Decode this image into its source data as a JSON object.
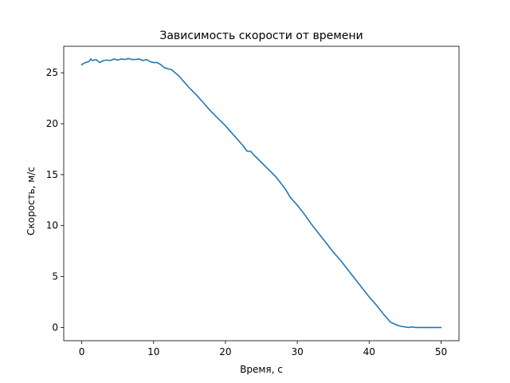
{
  "chart_data": {
    "type": "line",
    "title": "Зависимость скорости от времени",
    "xlabel": "Время, с",
    "ylabel": "Скорость, м/с",
    "xlim": [
      -2.5,
      52.5
    ],
    "ylim": [
      -1.3,
      27.6
    ],
    "x_ticks": [
      0,
      10,
      20,
      30,
      40,
      50
    ],
    "y_ticks": [
      0,
      5,
      10,
      15,
      20,
      25
    ],
    "grid": false,
    "series": [
      {
        "color": "#1f77b4",
        "x": [
          0,
          0.5,
          1,
          1.25,
          1.5,
          2,
          2.5,
          3,
          3.5,
          4,
          4.5,
          5,
          5.5,
          6,
          6.5,
          7,
          7.5,
          8,
          8.5,
          9,
          9.5,
          10,
          10.5,
          11,
          11.5,
          12,
          12.5,
          13,
          13.5,
          14,
          15,
          16,
          17,
          18,
          19,
          20,
          21,
          22,
          22.5,
          23,
          23.5,
          24,
          25,
          26,
          27,
          28,
          28.5,
          29,
          30,
          31,
          32,
          33,
          34,
          35,
          36,
          37,
          38,
          39,
          40,
          41,
          42,
          43,
          44,
          44.5,
          45,
          45.5,
          46,
          46.5,
          47,
          47.5,
          48,
          48.5,
          49,
          49.5,
          50
        ],
        "y": [
          25.8,
          26.0,
          26.1,
          26.35,
          26.2,
          26.3,
          26.0,
          26.2,
          26.25,
          26.2,
          26.35,
          26.25,
          26.35,
          26.3,
          26.4,
          26.3,
          26.3,
          26.35,
          26.2,
          26.3,
          26.1,
          26.0,
          26.0,
          25.8,
          25.5,
          25.4,
          25.3,
          25.0,
          24.7,
          24.3,
          23.5,
          22.8,
          22.0,
          21.2,
          20.5,
          19.8,
          19.0,
          18.2,
          17.8,
          17.3,
          17.3,
          16.9,
          16.2,
          15.5,
          14.8,
          13.9,
          13.4,
          12.8,
          12.0,
          11.1,
          10.1,
          9.2,
          8.3,
          7.4,
          6.6,
          5.7,
          4.8,
          3.9,
          3.0,
          2.2,
          1.3,
          0.5,
          0.2,
          0.1,
          0.05,
          0.0,
          0.05,
          0.0,
          0.0,
          0.0,
          0.0,
          0.0,
          0.0,
          0.0,
          0.0
        ]
      }
    ]
  }
}
